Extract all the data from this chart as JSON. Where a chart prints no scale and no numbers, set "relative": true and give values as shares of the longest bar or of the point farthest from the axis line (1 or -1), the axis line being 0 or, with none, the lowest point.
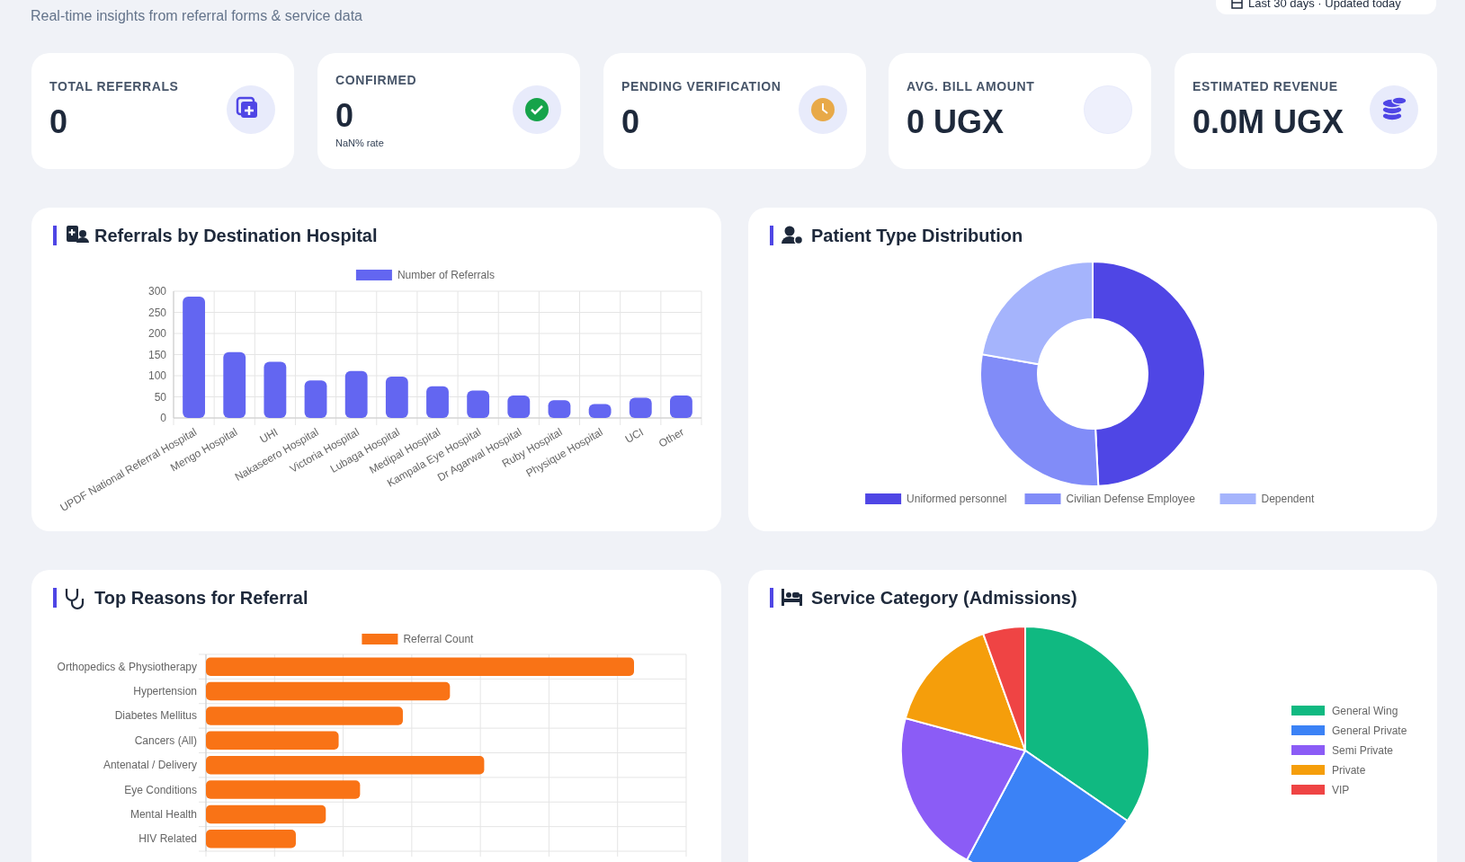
{
  "chart_data": [
    {
      "type": "other",
      "subtitle": "Real-time insights from referral forms & service data",
      "categories": [
        "TOTAL REFERRALS",
        "CONFIRMED",
        "PENDING VERIFICATION",
        "AVG. BILL AMOUNT",
        "ESTIMATED REVENUE"
      ],
      "value_labels": [
        "0",
        "0",
        "0",
        "0 UGX",
        "0.0M UGX"
      ],
      "annotations": [
        "NaN% rate",
        "Last 30 days · Updated today"
      ]
    },
    {
      "type": "bar",
      "title": "Referrals by Destination Hospital",
      "categories": [
        "UPDF National Referral Hospital",
        "Mengo Hospital",
        "UHI",
        "Nakaseero Hospital",
        "Victoria Hospital",
        "Lubaga Hospital",
        "Medipal Hospital",
        "Kampala Eye Hospital",
        "Dr Agarwal Hospital",
        "Ruby Hospital",
        "Physique Hospital",
        "UCI",
        "Other"
      ],
      "series": [
        {
          "name": "Number of Referrals",
          "color": "#6366f1",
          "values": [
            287,
            156,
            133,
            89,
            111,
            98,
            75,
            65,
            53,
            42,
            33,
            48,
            53
          ]
        }
      ],
      "ylim": [
        0,
        300
      ],
      "yticks": [
        0,
        50,
        100,
        150,
        200,
        250,
        300
      ],
      "grid": true,
      "legend": "top"
    },
    {
      "type": "donut",
      "title": "Patient Type Distribution",
      "categories": [
        "Uniformed personnel",
        "Civilian Defense Employee",
        "Dependent"
      ],
      "values": [
        49.2,
        28.6,
        22.2
      ],
      "colors": [
        "#4f46e5",
        "#818cf8",
        "#a5b4fc"
      ],
      "legend": "bottom"
    },
    {
      "type": "bar",
      "orientation": "horizontal",
      "relative": true,
      "title": "Top Reasons for Referral",
      "categories": [
        "Orthopedics & Physiotherapy",
        "Hypertension",
        "Diabetes Mellitus",
        "Cancers (All)",
        "Antenatal / Delivery",
        "Eye Conditions",
        "Mental Health",
        "HIV Related"
      ],
      "series": [
        {
          "name": "Referral Count",
          "color": "#f97316",
          "values": [
            1,
            0.57,
            0.46,
            0.31,
            0.65,
            0.36,
            0.28,
            0.21
          ]
        }
      ],
      "grid": true,
      "legend": "top"
    },
    {
      "type": "pie",
      "title": "Service Category (Admissions)",
      "categories": [
        "General Wing",
        "General Private",
        "Semi Private",
        "Private",
        "VIP"
      ],
      "values": [
        34.6,
        23.2,
        21.4,
        15.3,
        5.5
      ],
      "colors": [
        "#10b981",
        "#3b82f6",
        "#8b5cf6",
        "#f59e0b",
        "#ef4444"
      ],
      "legend": "right"
    }
  ]
}
